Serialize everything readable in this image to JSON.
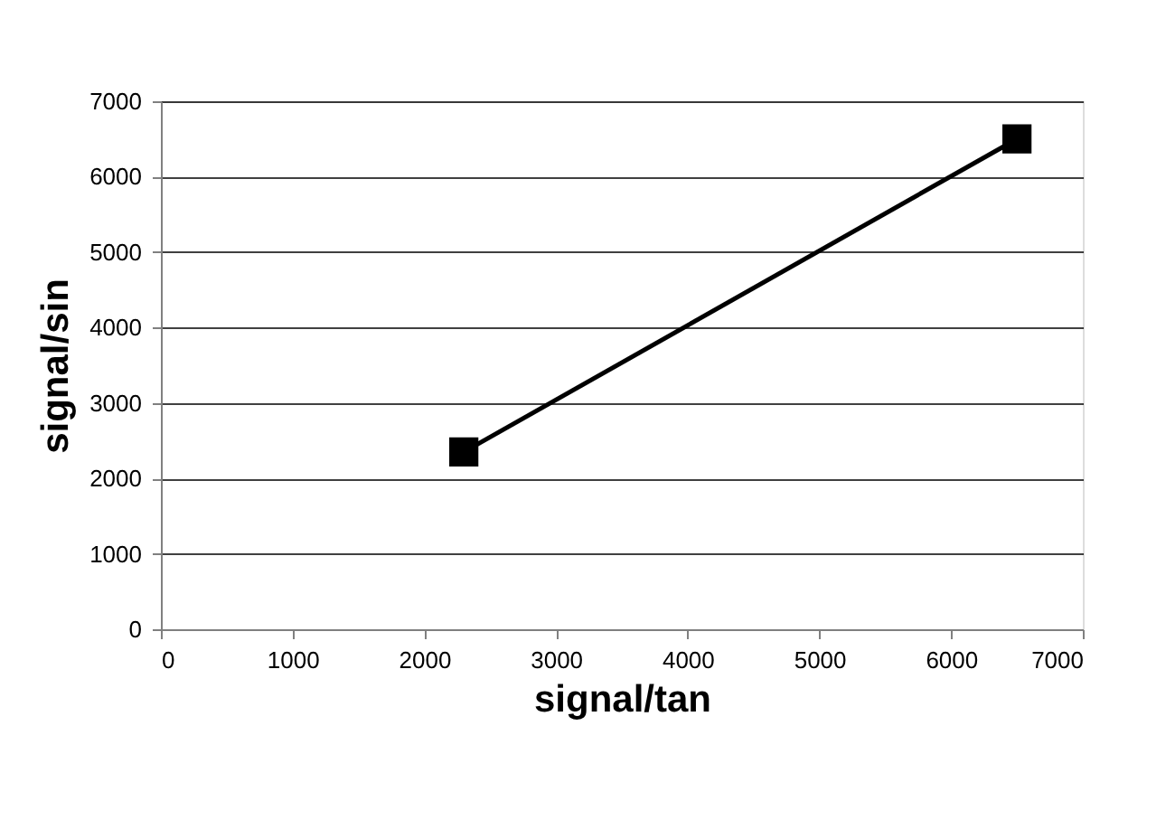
{
  "chart_data": {
    "type": "line",
    "xlabel": "signal/tan",
    "ylabel": "signal/sin",
    "x": [
      2300,
      6500
    ],
    "series": [
      {
        "color": "#000000",
        "values": [
          2350,
          6500
        ]
      }
    ],
    "xlim": [
      0,
      7000
    ],
    "xticks": [
      0,
      1000,
      2000,
      3000,
      4000,
      5000,
      6000,
      7000
    ],
    "ylim": [
      0,
      7000
    ],
    "yticks": [
      0,
      1000,
      2000,
      3000,
      4000,
      5000,
      6000,
      7000
    ],
    "grid": "y",
    "marker": "square",
    "line_style": "solid"
  }
}
